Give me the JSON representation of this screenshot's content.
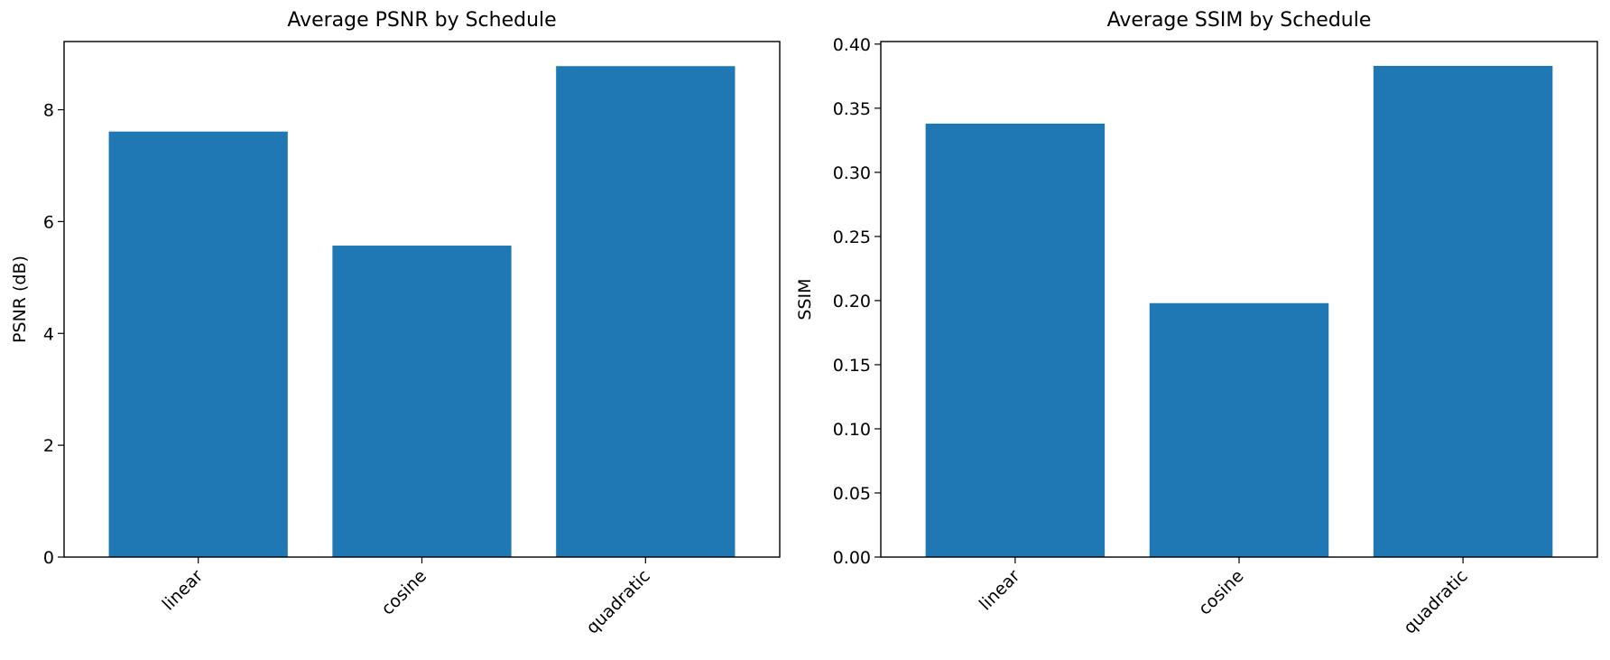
{
  "colors": {
    "bar": "#1f77b4",
    "axis": "#000000",
    "background": "#ffffff"
  },
  "chart_data": [
    {
      "type": "bar",
      "title": "Average PSNR by Schedule",
      "xlabel": "",
      "ylabel": "PSNR (dB)",
      "categories": [
        "linear",
        "cosine",
        "quadratic"
      ],
      "values": [
        7.61,
        5.57,
        8.78
      ],
      "ylim": [
        0,
        9.22
      ],
      "yticks": [
        0,
        2,
        4,
        6,
        8
      ],
      "ytick_labels": [
        "0",
        "2",
        "4",
        "6",
        "8"
      ],
      "xtick_rotation": 45,
      "grid": false,
      "legend": "none"
    },
    {
      "type": "bar",
      "title": "Average SSIM by Schedule",
      "xlabel": "",
      "ylabel": "SSIM",
      "categories": [
        "linear",
        "cosine",
        "quadratic"
      ],
      "values": [
        0.338,
        0.198,
        0.383
      ],
      "ylim": [
        0,
        0.402
      ],
      "yticks": [
        0,
        0.05,
        0.1,
        0.15,
        0.2,
        0.25,
        0.3,
        0.35,
        0.4
      ],
      "ytick_labels": [
        "0.00",
        "0.05",
        "0.10",
        "0.15",
        "0.20",
        "0.25",
        "0.30",
        "0.35",
        "0.40"
      ],
      "xtick_rotation": 45,
      "grid": false,
      "legend": "none"
    }
  ]
}
